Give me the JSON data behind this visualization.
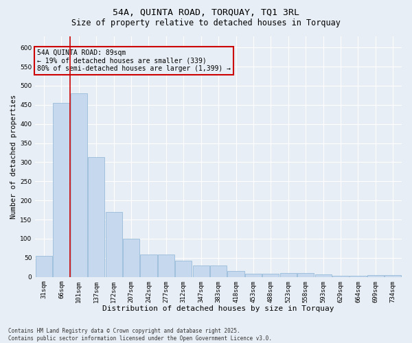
{
  "title": "54A, QUINTA ROAD, TORQUAY, TQ1 3RL",
  "subtitle": "Size of property relative to detached houses in Torquay",
  "xlabel": "Distribution of detached houses by size in Torquay",
  "ylabel": "Number of detached properties",
  "categories": [
    "31sqm",
    "66sqm",
    "101sqm",
    "137sqm",
    "172sqm",
    "207sqm",
    "242sqm",
    "277sqm",
    "312sqm",
    "347sqm",
    "383sqm",
    "418sqm",
    "453sqm",
    "488sqm",
    "523sqm",
    "558sqm",
    "593sqm",
    "629sqm",
    "664sqm",
    "699sqm",
    "734sqm"
  ],
  "bar_values": [
    55,
    455,
    480,
    313,
    170,
    100,
    59,
    59,
    43,
    30,
    30,
    15,
    8,
    8,
    10,
    10,
    7,
    3,
    3,
    4,
    4
  ],
  "bar_color": "#c5d8ed",
  "bar_edgecolor": "#8ab4d4",
  "background_color": "#e8eef5",
  "grid_color": "#ffffff",
  "vline_color": "#cc0000",
  "annotation_title": "54A QUINTA ROAD: 89sqm",
  "annotation_line1": "← 19% of detached houses are smaller (339)",
  "annotation_line2": "80% of semi-detached houses are larger (1,399) →",
  "annotation_box_color": "#cc0000",
  "ylim": [
    0,
    630
  ],
  "yticks": [
    0,
    50,
    100,
    150,
    200,
    250,
    300,
    350,
    400,
    450,
    500,
    550,
    600
  ],
  "footer": "Contains HM Land Registry data © Crown copyright and database right 2025.\nContains public sector information licensed under the Open Government Licence v3.0.",
  "title_fontsize": 9.5,
  "subtitle_fontsize": 8.5,
  "ylabel_fontsize": 7.5,
  "xlabel_fontsize": 8,
  "tick_fontsize": 6.5,
  "annotation_fontsize": 7,
  "footer_fontsize": 5.5
}
